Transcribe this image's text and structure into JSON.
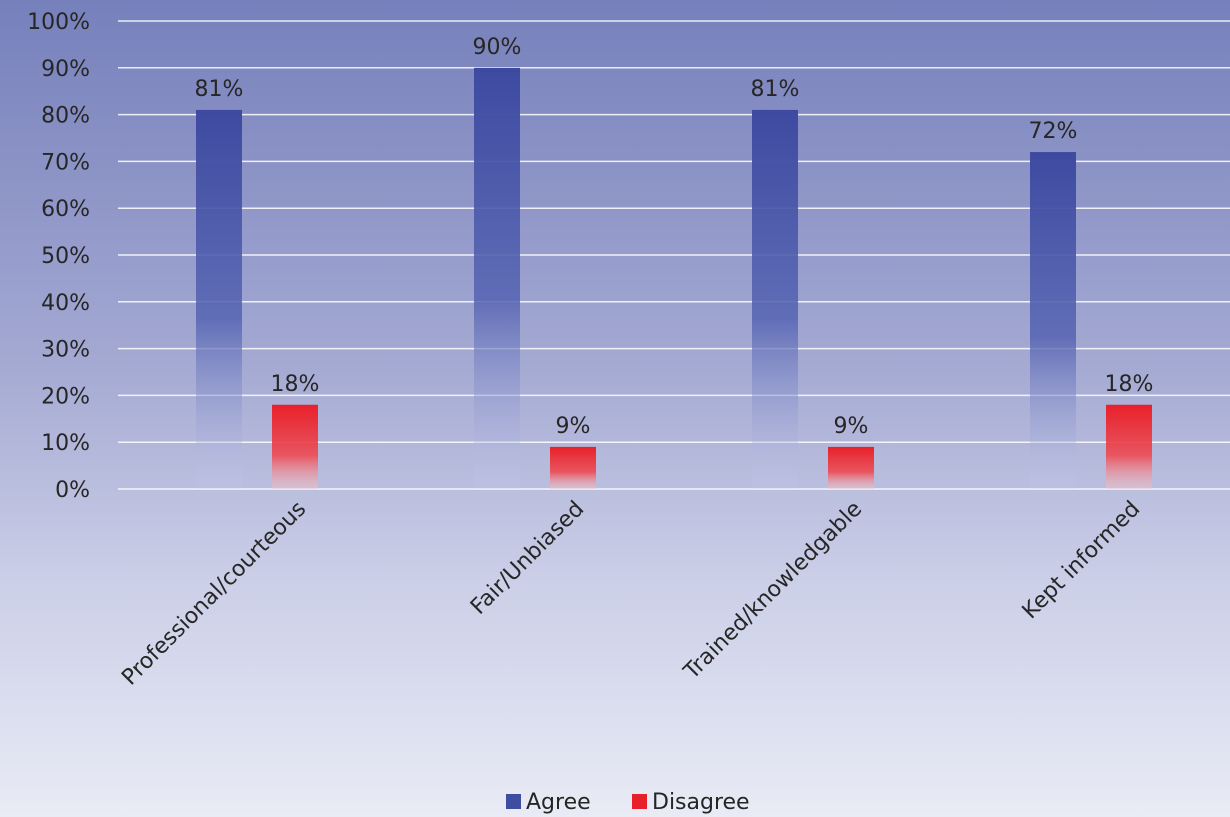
{
  "chart_data": {
    "type": "bar",
    "title": "",
    "xlabel": "",
    "ylabel": "",
    "categories": [
      "Professional/courteous",
      "Fair/Unbiased",
      "Trained/knowledgable",
      "Kept informed"
    ],
    "series": [
      {
        "name": "Agree",
        "values": [
          81,
          90,
          81,
          72
        ],
        "labels": [
          "81%",
          "90%",
          "81%",
          "72%"
        ]
      },
      {
        "name": "Disagree",
        "values": [
          18,
          9,
          9,
          18
        ],
        "labels": [
          "18%",
          "9%",
          "9%",
          "18%"
        ]
      }
    ],
    "ylim": [
      0,
      100
    ],
    "yticks": [
      "0%",
      "10%",
      "20%",
      "30%",
      "40%",
      "50%",
      "60%",
      "70%",
      "80%",
      "90%",
      "100%"
    ],
    "grid": true,
    "legend": "bottom-center",
    "colors": {
      "agree": "#3f4c9f",
      "disagree": "#e8202a"
    }
  }
}
